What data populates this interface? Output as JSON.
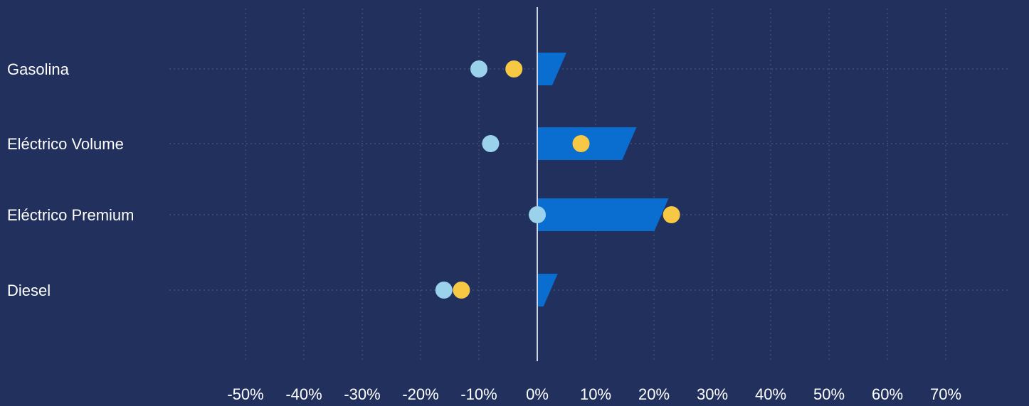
{
  "colors": {
    "background": "#21305c",
    "bar": "#0a6ed1",
    "dot_light_blue": "#9ad2ec",
    "dot_yellow": "#f7c843",
    "gridline": "#5d6d94",
    "zero_line": "#d0d6e2",
    "text": "#ffffff"
  },
  "chart_data": {
    "type": "bar",
    "orientation": "horizontal",
    "title": "",
    "xlabel": "",
    "ylabel": "",
    "xlim": [
      -50,
      70
    ],
    "x_ticks": [
      "-50%",
      "-40%",
      "-30%",
      "-20%",
      "-10%",
      "0%",
      "10%",
      "20%",
      "30%",
      "40%",
      "50%",
      "60%",
      "70%"
    ],
    "x_tick_values": [
      -50,
      -40,
      -30,
      -20,
      -10,
      0,
      10,
      20,
      30,
      40,
      50,
      60,
      70
    ],
    "grid": true,
    "legend": "none",
    "categories": [
      "Gasolina",
      "Eléctrico Volume",
      "Eléctrico Premium",
      "Diesel"
    ],
    "series": [
      {
        "kind": "bar",
        "values": [
          5,
          17,
          22.5,
          3.5
        ],
        "color": "#0a6ed1"
      },
      {
        "kind": "dot",
        "values": [
          -10,
          -8,
          0,
          -16
        ],
        "color": "#9ad2ec"
      },
      {
        "kind": "dot",
        "values": [
          -4,
          7.5,
          23,
          -13
        ],
        "color": "#f7c843"
      }
    ]
  }
}
